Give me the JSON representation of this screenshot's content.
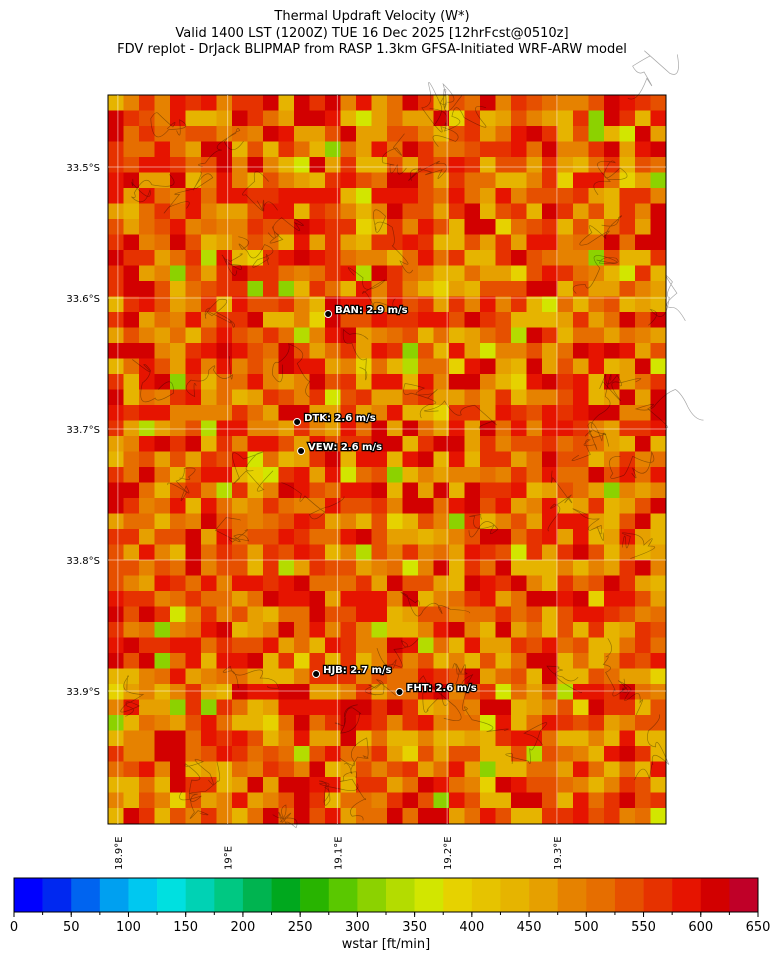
{
  "header": {
    "title_lines": [
      "Thermal Updraft Velocity (W*)",
      "Valid 1400 LST (1200Z) TUE 16 Dec 2025 [12hrFcst@0510z]",
      "FDV replot - DrJack BLIPMAP from RASP 1.3km GFSA-Initiated WRF-ARW model"
    ]
  },
  "map": {
    "lon_lim": [
      18.891,
      19.3994
    ],
    "lat_lim": [
      -33.445,
      -34.0015
    ],
    "lat_ticks": [
      {
        "value": -33.5,
        "label": "33.5°S"
      },
      {
        "value": -33.6,
        "label": "33.6°S"
      },
      {
        "value": -33.7,
        "label": "33.7°S"
      },
      {
        "value": -33.8,
        "label": "33.8°S"
      },
      {
        "value": -33.9,
        "label": "33.9°S"
      }
    ],
    "lon_ticks": [
      {
        "value": 18.9,
        "label": "18.9°E"
      },
      {
        "value": 19.0,
        "label": "19°E"
      },
      {
        "value": 19.1,
        "label": "19.1°E"
      },
      {
        "value": 19.2,
        "label": "19.2°E"
      },
      {
        "value": 19.3,
        "label": "19.3°E"
      }
    ],
    "stations": [
      {
        "label": "BAN: 2.9 m/s",
        "lon": 19.0916,
        "lat": -33.6122
      },
      {
        "label": "DTK: 2.6 m/s",
        "lon": 19.0633,
        "lat": -33.6946
      },
      {
        "label": "VEW: 2.6 m/s",
        "lon": 19.0669,
        "lat": -33.7168
      },
      {
        "label": "HJB: 2.7 m/s",
        "lon": 19.0806,
        "lat": -33.887
      },
      {
        "label": "FHT: 2.6 m/s",
        "lon": 19.1566,
        "lat": -33.9007
      }
    ]
  },
  "colorbar": {
    "label": "wstar [ft/min]",
    "lim": [
      0,
      650
    ],
    "ticks": [
      0,
      50,
      100,
      150,
      200,
      250,
      300,
      350,
      400,
      450,
      500,
      550,
      600,
      650
    ],
    "colors": [
      "#0000ff",
      "#0028f0",
      "#0064f0",
      "#00a0f0",
      "#00c8f0",
      "#00e0e0",
      "#00d2b4",
      "#00c882",
      "#00b450",
      "#00a81e",
      "#28b400",
      "#5ac800",
      "#8cd200",
      "#b4dc00",
      "#d2e600",
      "#e6d200",
      "#e6c300",
      "#e6b400",
      "#e6a000",
      "#e68200",
      "#e66e00",
      "#e65000",
      "#e63200",
      "#e61400",
      "#d20000",
      "#c00028"
    ]
  }
}
